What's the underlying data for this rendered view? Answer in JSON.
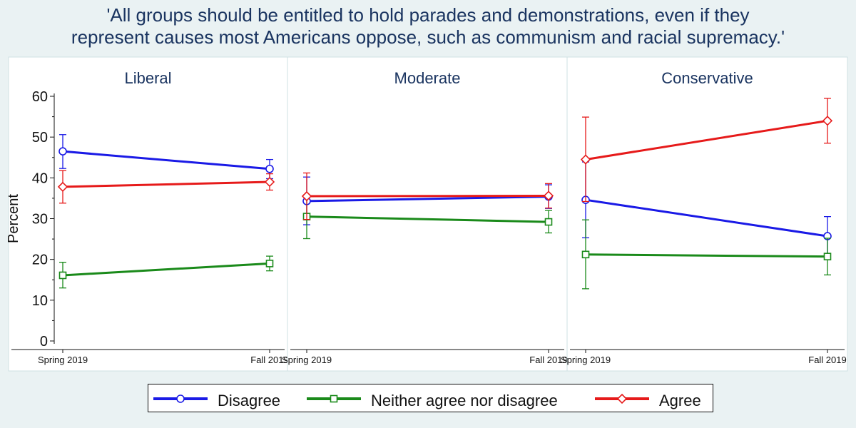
{
  "title_lines": [
    "'All groups should be entitled to hold parades and demonstrations, even if they",
    "represent causes most Americans oppose, such as communism and racial supremacy.'"
  ],
  "colors": {
    "background": "#eaf2f3",
    "text": "#1a3460",
    "Disagree": "#1a1ae6",
    "Neither agree nor disagree": "#1a8a1a",
    "Agree": "#e61a1a"
  },
  "legend": [
    {
      "label": "Disagree",
      "marker": "circle"
    },
    {
      "label": "Neither agree nor disagree",
      "marker": "square"
    },
    {
      "label": "Agree",
      "marker": "diamond"
    }
  ],
  "chart_data": {
    "type": "line",
    "x": [
      "Spring 2019",
      "Fall 2019"
    ],
    "ylabel": "Percent",
    "ylim": [
      0,
      60
    ],
    "yticks": [
      0,
      10,
      20,
      30,
      40,
      50,
      60
    ],
    "error_bars": true,
    "grid": false,
    "legend_position": "bottom",
    "panels": [
      {
        "title": "Liberal",
        "series": [
          {
            "name": "Disagree",
            "values": [
              46.5,
              42.2
            ],
            "ci_low": [
              42.3,
              39.8
            ],
            "ci_high": [
              50.6,
              44.5
            ]
          },
          {
            "name": "Neither agree nor disagree",
            "values": [
              16.1,
              19.0
            ],
            "ci_low": [
              13.0,
              17.2
            ],
            "ci_high": [
              19.3,
              20.8
            ]
          },
          {
            "name": "Agree",
            "values": [
              37.8,
              39.0
            ],
            "ci_low": [
              33.8,
              37.0
            ],
            "ci_high": [
              41.8,
              41.0
            ]
          }
        ]
      },
      {
        "title": "Moderate",
        "series": [
          {
            "name": "Disagree",
            "values": [
              34.3,
              35.4
            ],
            "ci_low": [
              28.5,
              32.5
            ],
            "ci_high": [
              40.2,
              38.3
            ]
          },
          {
            "name": "Neither agree nor disagree",
            "values": [
              30.5,
              29.2
            ],
            "ci_low": [
              25.1,
              26.5
            ],
            "ci_high": [
              35.8,
              32.0
            ]
          },
          {
            "name": "Agree",
            "values": [
              35.5,
              35.6
            ],
            "ci_low": [
              29.8,
              32.6
            ],
            "ci_high": [
              41.2,
              38.6
            ]
          }
        ]
      },
      {
        "title": "Conservative",
        "series": [
          {
            "name": "Disagree",
            "values": [
              34.6,
              25.7
            ],
            "ci_low": [
              25.3,
              20.9
            ],
            "ci_high": [
              43.9,
              30.5
            ]
          },
          {
            "name": "Neither agree nor disagree",
            "values": [
              21.2,
              20.7
            ],
            "ci_low": [
              12.8,
              16.2
            ],
            "ci_high": [
              29.7,
              25.2
            ]
          },
          {
            "name": "Agree",
            "values": [
              44.5,
              54.0
            ],
            "ci_low": [
              34.2,
              48.5
            ],
            "ci_high": [
              54.9,
              59.5
            ]
          }
        ]
      }
    ]
  }
}
